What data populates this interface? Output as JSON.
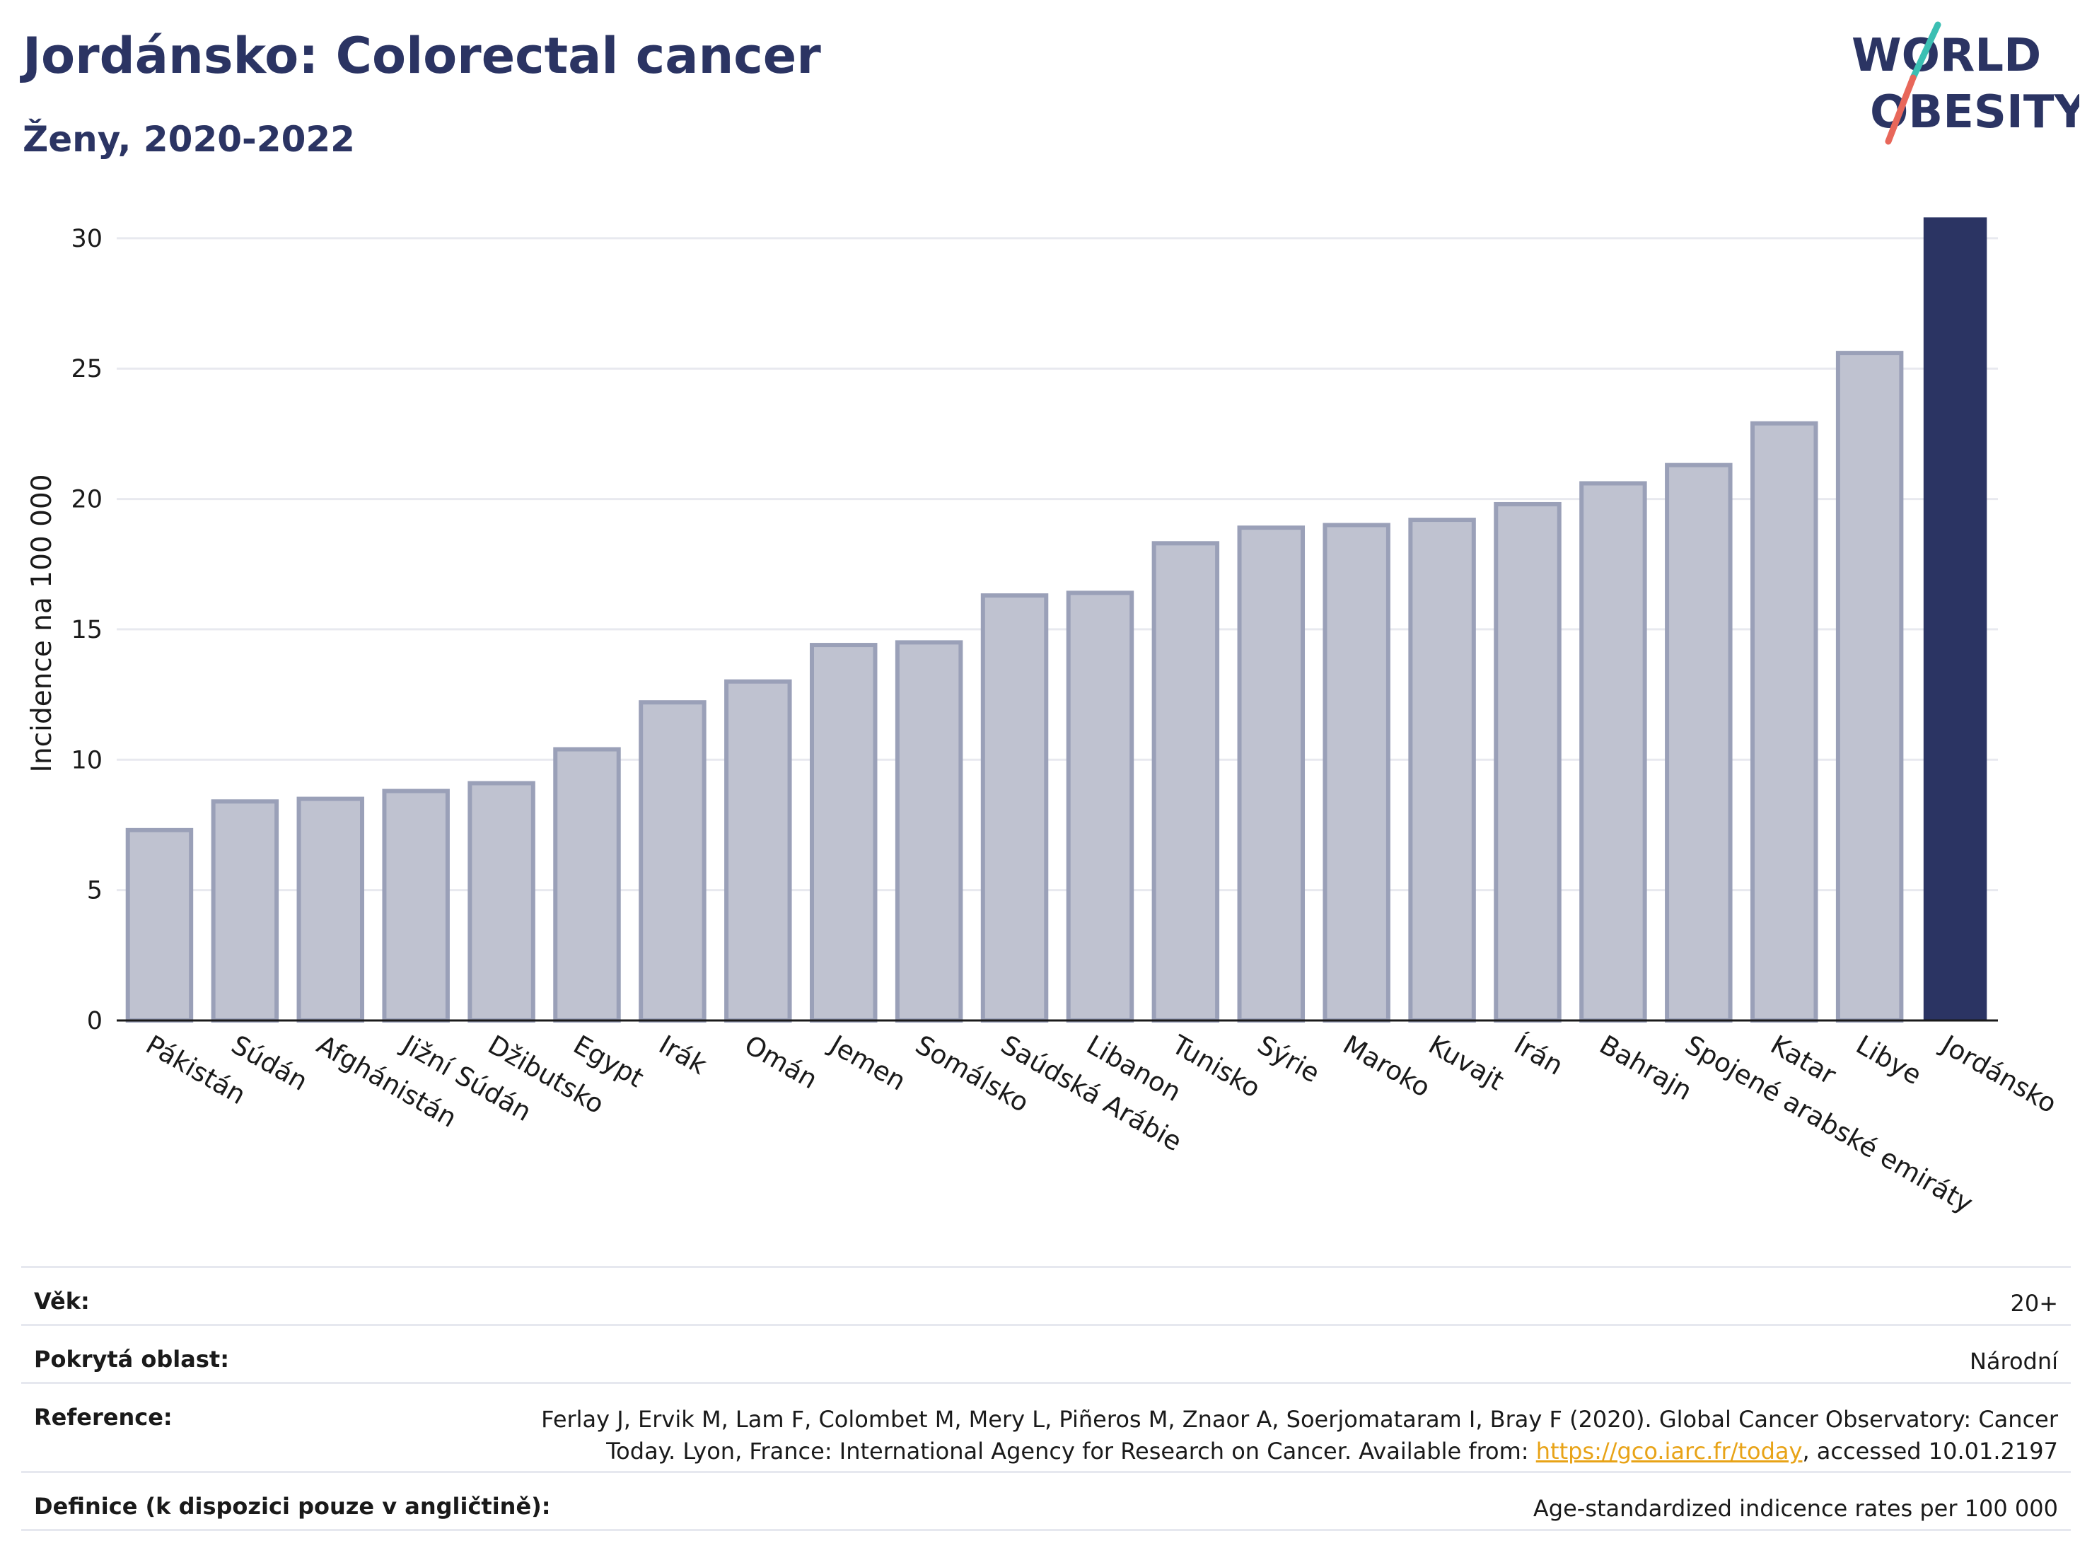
{
  "header": {
    "title": "Jordánsko: Colorectal cancer",
    "subtitle": "Ženy, 2020-2022"
  },
  "logo": {
    "line1": "WORLD",
    "line2": "OBESITY",
    "colors": {
      "text": "#2b3463",
      "slash_top": "#3bbfb3",
      "slash_bottom": "#e8675a"
    }
  },
  "colors": {
    "bar_default": "#bfc2d0",
    "bar_default_stroke": "#9aa0b8",
    "bar_highlight": "#2b3463",
    "grid": "#e8e9ef",
    "axis": "#1a1a1a"
  },
  "chart_data": {
    "type": "bar",
    "title": "Jordánsko: Colorectal cancer",
    "subtitle": "Ženy, 2020-2022",
    "xlabel": "",
    "ylabel": "Incidence na 100 000",
    "ylim": [
      0,
      31
    ],
    "yticks": [
      0,
      5,
      10,
      15,
      20,
      25,
      30
    ],
    "grid": true,
    "categories": [
      "Pákistán",
      "Súdán",
      "Afghánistán",
      "Jižní Súdán",
      "Džibutsko",
      "Egypt",
      "Irák",
      "Omán",
      "Jemen",
      "Somálsko",
      "Saúdská Arábie",
      "Libanon",
      "Tunisko",
      "Sýrie",
      "Maroko",
      "Kuvajt",
      "Írán",
      "Bahrajn",
      "Spojené arabské emiráty",
      "Katar",
      "Libye",
      "Jordánsko"
    ],
    "values": [
      7.3,
      8.4,
      8.5,
      8.8,
      9.1,
      10.4,
      12.2,
      13.0,
      14.4,
      14.5,
      16.3,
      16.4,
      18.3,
      18.9,
      19.0,
      19.2,
      19.8,
      20.6,
      21.3,
      22.9,
      25.6,
      30.8
    ],
    "highlight": "Jordánsko"
  },
  "info": {
    "rows": [
      {
        "label": "Věk:",
        "value": "20+"
      },
      {
        "label": "Pokrytá oblast:",
        "value": "Národní"
      },
      {
        "label": "Reference:",
        "value_line1": "Ferlay J, Ervik M, Lam F, Colombet M, Mery L, Piñeros M, Znaor A, Soerjomataram I, Bray F (2020). Global Cancer Observatory: Cancer",
        "value_line2_pre": "Today. Lyon, France: International Agency for Research on Cancer. Available from: ",
        "value_link": "https://gco.iarc.fr/today",
        "value_line2_post": ", accessed 10.01.2197"
      },
      {
        "label": "Definice (k dispozici pouze v angličtině):",
        "value": "Age-standardized indicence rates per 100 000"
      }
    ]
  }
}
